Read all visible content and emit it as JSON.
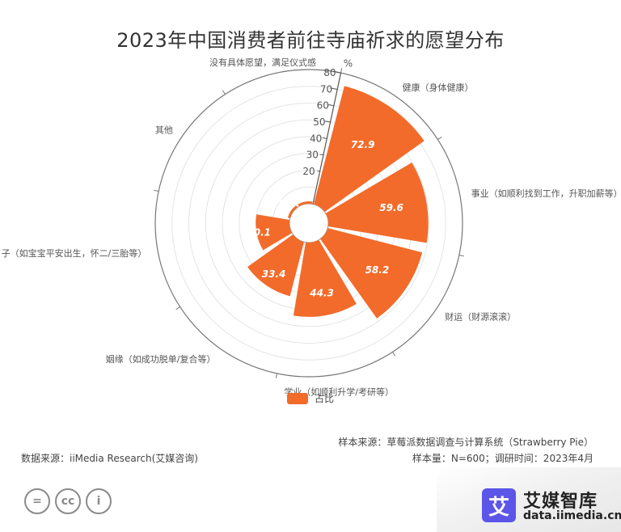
{
  "title": "2023年中国消费者前往寺庙祈求的愿望分布",
  "chart_data": {
    "type": "polar-bar",
    "title": "2023年中国消费者前往寺庙祈求的愿望分布",
    "unit": "%",
    "categories": [
      "健康（身体健康）",
      "事业（如顺利找到工作，升职加薪等）",
      "财运（财源滚滚）",
      "学业（如顺利升学/考研等）",
      "姻缘（如成功脱单/复合等）",
      "子女（如宝宝平安出生，怀二/三胎等）",
      "其他",
      "没有具体愿望，满足仪式感"
    ],
    "category_labels_shown": [
      "健康（身体健康）",
      "事业（如顺利找到工作，升职加薪等）",
      "财运（财源滚滚）",
      "学业（如顺利升学/考研等）",
      "姻缘（如成功脱单/复合等）",
      "子（如宝宝平安出生，怀二/三胎等）",
      "其他",
      "没有具体愿望，满足仪式感"
    ],
    "series": [
      {
        "name": "占比",
        "values": [
          72.9,
          59.6,
          58.2,
          44.3,
          33.4,
          20.1,
          0.4,
          1.1
        ]
      }
    ],
    "radial_ticks": [
      "20",
      "30",
      "40",
      "50",
      "60",
      "70",
      "80"
    ],
    "radial_range": [
      0,
      80
    ],
    "legend": "bottom",
    "bar_color": "#F26B2A"
  },
  "legend": {
    "label": "占比",
    "color": "#F26B2A"
  },
  "footer": {
    "sample_source": "样本来源：草莓派数据调查与计算系统（Strawberry Pie）",
    "sample_size": "样本量：N=600；调研时间：2023年4月",
    "data_source": "数据来源：iiMedia Research(艾媒咨询)"
  },
  "cc_icons": [
    "equals-icon",
    "cc-icon",
    "person-icon"
  ],
  "cc_text": [
    "=",
    "cc",
    "i"
  ],
  "brand": {
    "name": "艾媒智库",
    "url": "data.iimedia.cn",
    "logo_char": "艾",
    "logo_color": "#5B56E8"
  }
}
